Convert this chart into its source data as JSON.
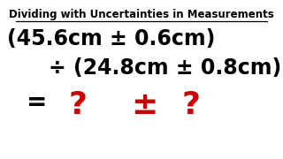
{
  "title": "Dividing with Uncertainties in Measurements",
  "line1": "(45.6cm ± 0.6cm)",
  "line2": "÷ (24.8cm ± 0.8cm)",
  "eq_symbol": "=",
  "q1": "?",
  "pm_symbol": "±",
  "q2": "?",
  "bg_color": "#ffffff",
  "title_color": "#000000",
  "body_color": "#000000",
  "red_color": "#cc0000",
  "title_fontsize": 8.5,
  "body_fontsize": 17,
  "answer_fontsize": 20,
  "fig_width": 3.2,
  "fig_height": 1.8,
  "dpi": 100
}
